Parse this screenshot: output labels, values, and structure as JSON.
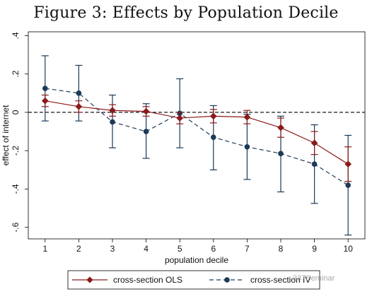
{
  "figure": {
    "title": "Figure 3: Effects by Population Decile"
  },
  "watermark": {
    "text": "337Seminar"
  },
  "chart_data": {
    "type": "line",
    "title": "Figure 3: Effects by Population Decile",
    "xlabel": "population decile",
    "ylabel": "effect of internet",
    "x": [
      1,
      2,
      3,
      4,
      5,
      6,
      7,
      8,
      9,
      10
    ],
    "xlim": [
      0.5,
      10.5
    ],
    "ylim": [
      -0.66,
      0.42
    ],
    "x_ticks": [
      {
        "value": 1,
        "label": "1"
      },
      {
        "value": 2,
        "label": "2"
      },
      {
        "value": 3,
        "label": "3"
      },
      {
        "value": 4,
        "label": "4"
      },
      {
        "value": 5,
        "label": "5"
      },
      {
        "value": 6,
        "label": "6"
      },
      {
        "value": 7,
        "label": "7"
      },
      {
        "value": 8,
        "label": "8"
      },
      {
        "value": 9,
        "label": "9"
      },
      {
        "value": 10,
        "label": "10"
      }
    ],
    "y_ticks": [
      {
        "value": 0.4,
        "label": ".4"
      },
      {
        "value": 0.2,
        "label": ".2"
      },
      {
        "value": 0,
        "label": "0"
      },
      {
        "value": -0.2,
        "label": "-.2"
      },
      {
        "value": -0.4,
        "label": "-.4"
      },
      {
        "value": -0.6,
        "label": "-.6"
      }
    ],
    "reference_line": {
      "y": 0,
      "style": "dashed",
      "color": "#000000"
    },
    "grid": false,
    "legend_position": "bottom",
    "series": [
      {
        "name": "cross-section OLS",
        "color": "#8b1a1a",
        "marker": "diamond",
        "line_style": "solid",
        "values": [
          0.06,
          0.03,
          0.01,
          0.005,
          -0.03,
          -0.02,
          -0.025,
          -0.08,
          -0.16,
          -0.27
        ],
        "ci_low": [
          0.03,
          0.0,
          -0.02,
          -0.02,
          -0.06,
          -0.055,
          -0.06,
          -0.13,
          -0.22,
          -0.36
        ],
        "ci_high": [
          0.09,
          0.06,
          0.04,
          0.03,
          0.0,
          0.015,
          0.01,
          -0.03,
          -0.1,
          -0.18
        ]
      },
      {
        "name": "cross-section IV",
        "color": "#1b3a57",
        "marker": "circle",
        "line_style": "dashed",
        "values": [
          0.125,
          0.1,
          -0.05,
          -0.1,
          -0.005,
          -0.13,
          -0.18,
          -0.215,
          -0.27,
          -0.38
        ],
        "ci_low": [
          -0.045,
          -0.045,
          -0.185,
          -0.24,
          -0.185,
          -0.3,
          -0.35,
          -0.415,
          -0.475,
          -0.64
        ],
        "ci_high": [
          0.295,
          0.245,
          0.09,
          0.045,
          0.175,
          0.035,
          -0.01,
          -0.02,
          -0.065,
          -0.12
        ]
      }
    ]
  }
}
